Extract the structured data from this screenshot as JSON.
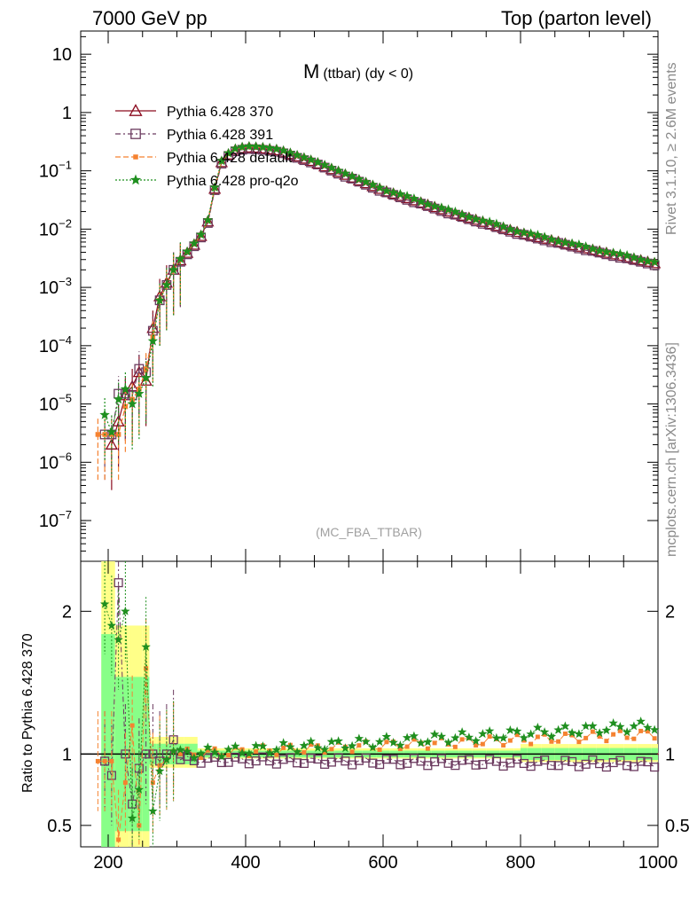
{
  "header": {
    "left": "7000 GeV pp",
    "right": "Top (parton level)"
  },
  "side_labels": {
    "top": "Rivet 3.1.10, ≥ 2.6M events",
    "bottom": "mcplots.cern.ch [arXiv:1306.3436]"
  },
  "colors": {
    "s370": "#8b0b1f",
    "s391": "#6b3a5f",
    "sdefault": "#f58231",
    "sq2o": "#1f8f1f",
    "band_yellow": "#ffff88",
    "band_green": "#88ff88"
  },
  "chart_data": [
    {
      "type": "line",
      "title_main": "M",
      "title_sub": "(ttbar) (dy < 0)",
      "watermark": "(MC_FBA_TTBAR)",
      "ylog": true,
      "xlim": [
        160,
        1000
      ],
      "ylim": [
        2e-08,
        25
      ],
      "y_ticklabels": [
        {
          "v": 10,
          "label": "10"
        },
        {
          "v": 1,
          "label": "1"
        },
        {
          "v": 0.1,
          "label": "10",
          "exp": "−1"
        },
        {
          "v": 0.01,
          "label": "10",
          "exp": "−2"
        },
        {
          "v": 0.001,
          "label": "10",
          "exp": "−3"
        },
        {
          "v": 0.0001,
          "label": "10",
          "exp": "−4"
        },
        {
          "v": 1e-05,
          "label": "10",
          "exp": "−5"
        },
        {
          "v": 1e-06,
          "label": "10",
          "exp": "−6"
        },
        {
          "v": 1e-07,
          "label": "10",
          "exp": "−7"
        }
      ],
      "legend": [
        {
          "name": "Pythia 6.428 370",
          "key": "s370"
        },
        {
          "name": "Pythia 6.428 391",
          "key": "s391"
        },
        {
          "name": "Pythia 6.428 default",
          "key": "sdefault"
        },
        {
          "name": "Pythia 6.428 pro-q2o",
          "key": "sq2o"
        }
      ],
      "low_points": {
        "s370": [
          [
            205,
            2e-06
          ],
          [
            215,
            5e-06
          ],
          [
            225,
            1.4e-05
          ],
          [
            235,
            2e-05
          ],
          [
            245,
            3.5e-05
          ],
          [
            255,
            2.5e-05
          ],
          [
            265,
            0.0002
          ],
          [
            275,
            0.0007
          ],
          [
            285,
            0.0012
          ],
          [
            295,
            0.002
          ]
        ],
        "s391": [
          [
            195,
            3e-06
          ],
          [
            205,
            3e-06
          ],
          [
            215,
            1.5e-05
          ],
          [
            225,
            1.5e-05
          ],
          [
            235,
            1.4e-05
          ],
          [
            245,
            4e-05
          ],
          [
            255,
            3.5e-05
          ],
          [
            265,
            0.00018
          ],
          [
            275,
            0.0006
          ],
          [
            285,
            0.0011
          ],
          [
            295,
            0.002
          ]
        ],
        "sdefault": [
          [
            185,
            3e-06
          ],
          [
            195,
            3e-06
          ],
          [
            205,
            3e-06
          ],
          [
            215,
            3e-06
          ],
          [
            225,
            9e-06
          ],
          [
            235,
            1.2e-05
          ],
          [
            245,
            1.8e-05
          ],
          [
            255,
            4e-05
          ],
          [
            265,
            0.00014
          ],
          [
            275,
            0.0006
          ],
          [
            285,
            0.0011
          ],
          [
            295,
            0.002
          ]
        ],
        "sq2o": [
          [
            195,
            6.5e-06
          ],
          [
            205,
            3.3e-06
          ],
          [
            215,
            1.2e-05
          ],
          [
            225,
            1.8e-05
          ],
          [
            235,
            1e-05
          ],
          [
            245,
            1.5e-05
          ],
          [
            255,
            2.8e-05
          ],
          [
            265,
            0.00012
          ],
          [
            275,
            0.0006
          ],
          [
            285,
            0.0011
          ],
          [
            295,
            0.002
          ]
        ]
      },
      "anchors_x": [
        300,
        320,
        340,
        350,
        360,
        380,
        400,
        420,
        450,
        500,
        600,
        700,
        800,
        900,
        1000
      ],
      "anchors_y": [
        0.0025,
        0.0045,
        0.009,
        0.02,
        0.12,
        0.22,
        0.25,
        0.245,
        0.22,
        0.14,
        0.046,
        0.019,
        0.0085,
        0.0045,
        0.0025
      ],
      "series_factor": {
        "s370": 1.0,
        "s391": 0.95,
        "sdefault": 1.04,
        "sq2o": 1.06
      }
    },
    {
      "type": "line",
      "ylabel": "Ratio to Pythia 6.428 370",
      "xlabel_ticks": [
        "200",
        "400",
        "600",
        "800",
        "1000"
      ],
      "xlim": [
        160,
        1000
      ],
      "ylim": [
        0.35,
        2.35
      ],
      "y_ticklabels": [
        "0.5",
        "1",
        "2"
      ],
      "reference": 1,
      "points": {
        "s391": [
          [
            195,
            0.95
          ],
          [
            205,
            0.85
          ],
          [
            215,
            2.2
          ],
          [
            225,
            1.0
          ],
          [
            235,
            0.65
          ],
          [
            245,
            0.9
          ],
          [
            255,
            1.0
          ],
          [
            265,
            1.0
          ],
          [
            275,
            0.95
          ],
          [
            285,
            1.0
          ],
          [
            295,
            1.1
          ],
          [
            305,
            1.0
          ]
        ],
        "sdefault": [
          [
            185,
            0.95
          ],
          [
            195,
            0.95
          ],
          [
            205,
            0.95
          ],
          [
            215,
            0.4
          ],
          [
            225,
            0.8
          ],
          [
            235,
            1.2
          ],
          [
            245,
            0.5
          ],
          [
            255,
            1.6
          ],
          [
            265,
            0.8
          ],
          [
            275,
            0.92
          ],
          [
            285,
            0.96
          ],
          [
            295,
            1.02
          ]
        ],
        "sq2o": [
          [
            195,
            2.05
          ],
          [
            205,
            1.9
          ],
          [
            215,
            1.8
          ],
          [
            225,
            2.0
          ],
          [
            235,
            0.55
          ],
          [
            245,
            0.75
          ],
          [
            255,
            1.75
          ],
          [
            265,
            0.6
          ],
          [
            275,
            0.88
          ],
          [
            285,
            0.96
          ],
          [
            295,
            1.02
          ]
        ]
      },
      "trend": {
        "s391": [
          0.96,
          0.93
        ],
        "sdefault": [
          1.0,
          1.14
        ],
        "sq2o": [
          1.0,
          1.2
        ]
      }
    }
  ]
}
